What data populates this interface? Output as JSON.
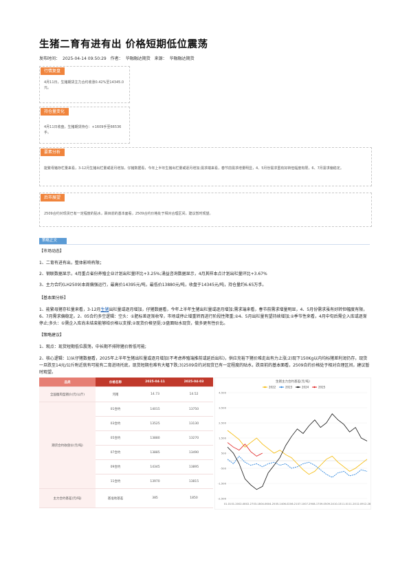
{
  "article": {
    "title": "生猪二育有进有出 价格短期低位震荡",
    "publish_label": "发布时间：",
    "publish_time": "2025-04-14 09:50:29",
    "author_label": "作者：",
    "author": "华融融达期货",
    "source_label": "来源：",
    "source": "华融融达期货"
  },
  "boxes": {
    "market_review": {
      "tag": "行情复盘",
      "text": "4月11日，生猪期货主力合约收涨0.42%至14345.0元。"
    },
    "position_change": {
      "tag": "持仓量变化",
      "text": "4月11日收盘，生猪期货持仓：+1609手至66536手。"
    },
    "analysis": {
      "tag": "要素分析",
      "text": "能繁母猪存栏量来看，3-12月生猪出栏量或逐月增加，仔猪数据看，今年上半年生猪出栏量或逐月增加;需求端来看，春节前需求增量明显，4、5月份需求虽有好转但幅度有限，6、7月需求偏稳定。"
    },
    "outlook": {
      "tag": "后市展望",
      "text": "2509合约对现货已有一定程度的贴水，跌目前的基本面看，2509合约价格处于相对合理区间，建议暂时观望。"
    }
  },
  "section": {
    "tag": "策略正文",
    "market_heading": "【市场动态】",
    "market_items": [
      "1、二育有进有出，整体影响有限；",
      "2、钢联数据显示，4月重点省份养殖企业计划出栏量环比+3.25%;涌益咨询数据显示，4月其样本点计划出栏量环比+3.67%",
      "3、主力合约(LH2509)本周偏强运行，最高价14395元/吨，最低价13880元/吨，收盘于14345元/吨，持仓量约6.65万手。"
    ],
    "fundamental_heading": "【基本面分析】",
    "fundamental_pre": "1、能繁母猪存栏量来看，3-12月",
    "fundamental_link": "生猪",
    "fundamental_post": "出栏量或逐月增加，仔猪数据看，今年上半年生猪出栏量或逐月增加;需求端来看，春节前需求增量明显，4、5月份需求虽有好转但幅度有限，6、7月需求偏稳定。2、05合约多空逻辑：空头：①肥标差逐渐收窄，市场或停止增重转而进行阶段性降重;②4、5月出栏量有望持续增加;②季节性来看，4月中旬后需企入库或逐渐停止;多头：①需企入库尚未结束能够给价格以支撑;②现货价格坚挺;③盘面贴水现货，做多更有性价比。",
    "strategy_heading": "【策略建议】",
    "strategy_items": [
      "1、观点：现货短期低位震荡，中长期不排除猪价新低可能;",
      "2、核心逻辑：1)从仔猪数据看，2025年上半年生猪出栏量或逐月增加(不考虑养殖端推前或延后出栏)，供应充裕下猪价难走出有力上涨;2)现下150Kg以内均标猪差利润仍存，现货一旦跌至14元/公斤附近就有可能有二育进场托底，现货短期也难有大幅下跌;3)2509合约对现货已有一定程度的贴水，跌目前的基本面看，2509合约价格处于相对合理区间，建议暂时观望。"
    ]
  },
  "table": {
    "headers": [
      "品类",
      "价格名称",
      "2025-04-11",
      "2025-04-03"
    ],
    "spot_row": {
      "category": "全国瘦肉型猪价(元/公斤)",
      "name": "河南",
      "v1": "14.73",
      "v2": "14.52"
    },
    "futures_category": "期货合约收盘价(元/吨)",
    "futures_rows": [
      {
        "name": "01合约",
        "v1": "14015",
        "v2": "13750"
      },
      {
        "name": "03合约",
        "v1": "13525",
        "v2": "13130"
      },
      {
        "name": "05合约",
        "v1": "13880",
        "v2": "13270"
      },
      {
        "name": "07合约",
        "v1": "13885",
        "v2": "13490"
      },
      {
        "name": "09合约",
        "v1": "14345",
        "v2": "13895"
      },
      {
        "name": "11合约",
        "v1": "13970",
        "v2": "13815"
      }
    ],
    "basis_row": {
      "category": "主力合约基差(元/吨)",
      "name": "基准地基差",
      "v1": "385",
      "v2": "1850"
    }
  },
  "chart_data": {
    "type": "line",
    "title": "生猪主力合约基差(元/吨)",
    "xlabel": "",
    "ylabel": "",
    "ylim": [
      -2500,
      4500
    ],
    "yticks": [
      4500,
      3500,
      2500,
      1500,
      500,
      -500,
      -1500,
      -2500
    ],
    "ytick_labels": [
      "4,500",
      "3,500",
      "2,500",
      "1,500",
      "500",
      "-500",
      "-1,500",
      "-2,500"
    ],
    "categories": [
      "01-01",
      "01-16",
      "01-31",
      "02-15",
      "03-01",
      "03-16",
      "03-31",
      "04-15",
      "04-30",
      "05-15",
      "05-30",
      "06-14",
      "06-29",
      "07-14",
      "07-29",
      "08-13",
      "08-28",
      "09-12",
      "09-27",
      "10-12",
      "10-27",
      "11-11",
      "11-26",
      "12-11",
      "12-26"
    ],
    "x_tick_labels": [
      "01-01",
      "01-20",
      "02-08",
      "02-27",
      "03-18",
      "04-06",
      "04-25",
      "05-14",
      "06-02",
      "06-21",
      "07-10",
      "07-29",
      "08-17",
      "09-05",
      "09-24",
      "10-13",
      "11-01",
      "11-20",
      "12-09",
      "12-28"
    ],
    "legend_position": "top",
    "series": [
      {
        "name": "2022",
        "color": "#f5b800",
        "values": [
          2000,
          1700,
          1400,
          900,
          1200,
          1500,
          1100,
          800,
          500,
          700,
          400,
          200,
          -200,
          -600,
          -900,
          -700,
          -300,
          100,
          300,
          -100,
          -400,
          -700,
          -500,
          -200,
          100
        ]
      },
      {
        "name": "2023",
        "color": "#2e86de",
        "values": [
          100,
          -200,
          300,
          -100,
          -300,
          -200,
          -400,
          -200,
          -100,
          -300,
          -200,
          -500,
          -400,
          -200,
          -100,
          -300,
          -600,
          -900,
          -1100,
          -800,
          -700,
          -1000,
          -900,
          -600,
          -700
        ]
      },
      {
        "name": "2024",
        "color": "#111111",
        "values": [
          900,
          500,
          -200,
          -1200,
          -1600,
          -1900,
          -1700,
          -800,
          -300,
          200,
          1000,
          1600,
          2100,
          1800,
          2300,
          2700,
          2200,
          2500,
          3100,
          2700,
          2400,
          1900,
          2200,
          1500,
          1300
        ]
      },
      {
        "name": "2025",
        "color": "#e02020",
        "values": [
          1200,
          900,
          700,
          1100,
          600,
          300,
          500,
          null,
          null,
          null,
          null,
          null,
          null,
          null,
          null,
          null,
          null,
          null,
          null,
          null,
          null,
          null,
          null,
          null,
          null
        ]
      }
    ]
  }
}
